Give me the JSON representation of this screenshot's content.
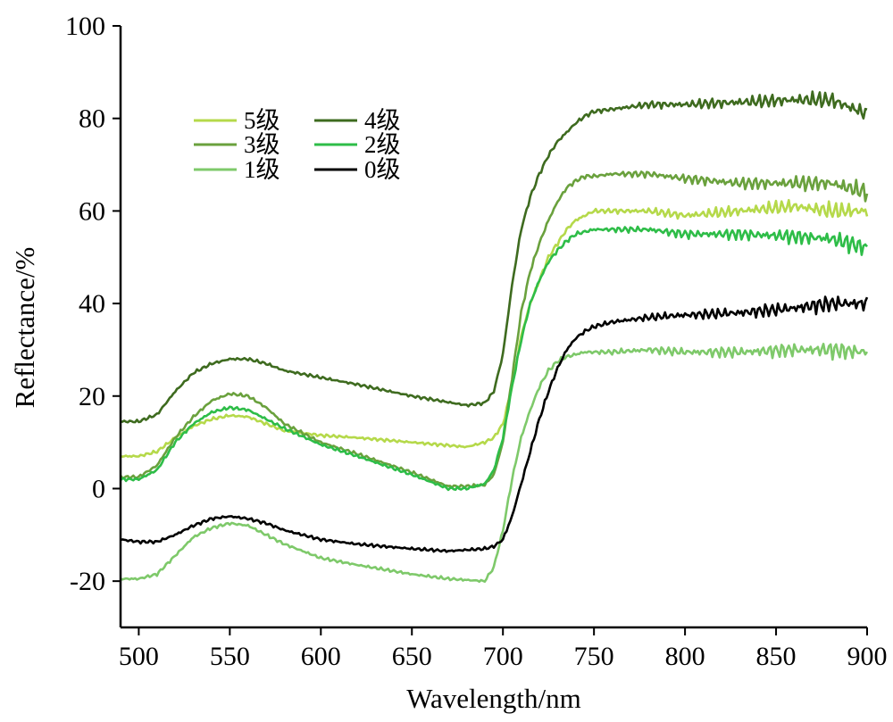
{
  "chart_data": {
    "type": "line",
    "xlabel": "Wavelength/nm",
    "ylabel": "Reflectance/%",
    "xlim": [
      490,
      900
    ],
    "ylim": [
      -30,
      100
    ],
    "xticks": [
      500,
      550,
      600,
      650,
      700,
      750,
      800,
      850,
      900
    ],
    "yticks": [
      -20,
      0,
      20,
      40,
      60,
      80,
      100
    ],
    "grid": false,
    "legend_position": "top-left",
    "legend_order": [
      0,
      1,
      2,
      3,
      4,
      5
    ],
    "series": [
      {
        "name": "5级",
        "color": "#b5d94a",
        "x": [
          490,
          500,
          510,
          520,
          530,
          540,
          550,
          560,
          570,
          580,
          600,
          620,
          650,
          680,
          690,
          695,
          700,
          705,
          710,
          715,
          720,
          725,
          730,
          735,
          740,
          745,
          750,
          760,
          780,
          800,
          830,
          860,
          880,
          900
        ],
        "y": [
          7,
          7,
          8,
          11,
          13.5,
          15,
          15.8,
          15.5,
          14,
          12.5,
          11.5,
          11,
          10,
          9,
          10,
          11,
          14,
          22,
          33,
          40,
          45,
          50,
          53,
          56,
          58,
          59,
          60,
          60,
          60,
          59,
          60,
          61,
          60,
          60
        ]
      },
      {
        "name": "4级",
        "color": "#3e6b1f",
        "x": [
          490,
          500,
          510,
          520,
          530,
          540,
          550,
          560,
          570,
          580,
          600,
          620,
          650,
          680,
          690,
          695,
          700,
          705,
          710,
          715,
          720,
          725,
          730,
          735,
          740,
          745,
          750,
          760,
          780,
          800,
          830,
          860,
          880,
          900
        ],
        "y": [
          14.5,
          14.5,
          16,
          21,
          25,
          27,
          28,
          28,
          27,
          25.5,
          24,
          22.5,
          20,
          18,
          18.5,
          21,
          29,
          44,
          56,
          63,
          68,
          72,
          75,
          77,
          79,
          80.5,
          81.5,
          82,
          83,
          83,
          83.5,
          84,
          84,
          81
        ]
      },
      {
        "name": "3级",
        "color": "#6aa13d",
        "x": [
          490,
          500,
          510,
          520,
          530,
          540,
          550,
          560,
          570,
          580,
          600,
          620,
          650,
          670,
          680,
          690,
          695,
          700,
          705,
          710,
          715,
          720,
          725,
          730,
          735,
          740,
          745,
          750,
          760,
          780,
          800,
          830,
          860,
          880,
          900
        ],
        "y": [
          2.5,
          2.5,
          5,
          11,
          15.5,
          19,
          20.5,
          20,
          17.5,
          14,
          10,
          7.5,
          3.5,
          0.5,
          0.5,
          0.8,
          3,
          10,
          24,
          38,
          47,
          53,
          58,
          62,
          65,
          66.5,
          67.5,
          67.5,
          68,
          68,
          67,
          66,
          66,
          66,
          64
        ]
      },
      {
        "name": "2级",
        "color": "#2ebd48",
        "x": [
          490,
          500,
          510,
          520,
          530,
          540,
          550,
          560,
          570,
          580,
          600,
          620,
          650,
          670,
          680,
          690,
          695,
          700,
          705,
          710,
          715,
          720,
          725,
          730,
          735,
          740,
          745,
          750,
          760,
          780,
          800,
          830,
          860,
          880,
          900
        ],
        "y": [
          2,
          2,
          4,
          10,
          14,
          16.5,
          17.5,
          17,
          15,
          13,
          9.5,
          7,
          3,
          0,
          0,
          1,
          4,
          11,
          22,
          32,
          40,
          45,
          49,
          51.5,
          53.5,
          55,
          55.5,
          56,
          56,
          56,
          55,
          55,
          54.5,
          54,
          52
        ]
      },
      {
        "name": "1级",
        "color": "#7ec96a",
        "x": [
          490,
          500,
          510,
          520,
          530,
          540,
          550,
          560,
          570,
          580,
          600,
          620,
          650,
          670,
          690,
          695,
          700,
          705,
          710,
          715,
          720,
          725,
          730,
          735,
          740,
          745,
          750,
          760,
          780,
          800,
          830,
          860,
          880,
          900
        ],
        "y": [
          -19.5,
          -19.5,
          -18.5,
          -14.5,
          -10.5,
          -8.5,
          -7.5,
          -8,
          -10,
          -12,
          -15,
          -16.5,
          -18.5,
          -19.5,
          -20,
          -17,
          -9,
          2,
          11,
          17,
          22,
          25.5,
          27.5,
          28.5,
          29,
          29.5,
          29.5,
          29.5,
          30,
          29.5,
          29.5,
          30,
          30,
          29.5
        ]
      },
      {
        "name": "0级",
        "color": "#000000",
        "x": [
          490,
          500,
          510,
          520,
          530,
          540,
          550,
          560,
          570,
          580,
          600,
          620,
          650,
          670,
          690,
          695,
          700,
          705,
          710,
          715,
          720,
          725,
          730,
          735,
          740,
          745,
          750,
          760,
          780,
          800,
          830,
          860,
          880,
          900
        ],
        "y": [
          -11,
          -11.5,
          -11.5,
          -10,
          -8,
          -6.5,
          -6,
          -6.5,
          -7.5,
          -9,
          -11,
          -12,
          -13,
          -13.5,
          -13,
          -12.5,
          -11,
          -6,
          1,
          8,
          15,
          21,
          26,
          30,
          32.5,
          34,
          35,
          36,
          37,
          37.5,
          38,
          39,
          40,
          40
        ]
      }
    ]
  }
}
